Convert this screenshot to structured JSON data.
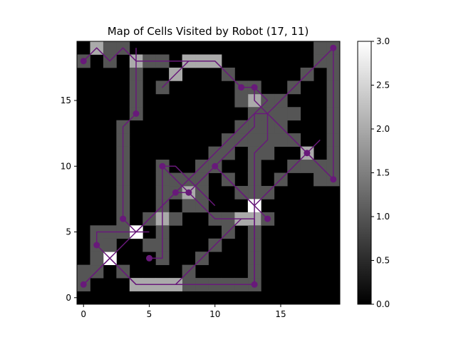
{
  "chart_data": {
    "type": "heatmap",
    "title": "Map of Cells Visited by Robot (17, 11)",
    "grid_size": [
      20,
      20
    ],
    "xlim": [
      -0.5,
      19.5
    ],
    "ylim": [
      -0.5,
      19.5
    ],
    "xticks": [
      0,
      5,
      10,
      15
    ],
    "yticks": [
      0,
      5,
      10,
      15
    ],
    "colormap": "gray",
    "grid": false,
    "colorbar": {
      "range": [
        0,
        3
      ],
      "ticks": [
        "0.0",
        "0.5",
        "1.0",
        "1.5",
        "2.0",
        "2.5",
        "3.0"
      ],
      "position": "right"
    },
    "path_color": "#68197a",
    "cells": [
      {
        "x": 0,
        "y": 18,
        "v": 1
      },
      {
        "x": 1,
        "y": 19,
        "v": 2
      },
      {
        "x": 2,
        "y": 19,
        "v": 1
      },
      {
        "x": 2,
        "y": 18,
        "v": 1
      },
      {
        "x": 3,
        "y": 19,
        "v": 1
      },
      {
        "x": 4,
        "y": 18,
        "v": 2
      },
      {
        "x": 5,
        "y": 18,
        "v": 1
      },
      {
        "x": 6,
        "y": 18,
        "v": 1
      },
      {
        "x": 7,
        "y": 17,
        "v": 2
      },
      {
        "x": 8,
        "y": 18,
        "v": 2
      },
      {
        "x": 9,
        "y": 18,
        "v": 2
      },
      {
        "x": 10,
        "y": 18,
        "v": 2
      },
      {
        "x": 11,
        "y": 17,
        "v": 1
      },
      {
        "x": 12,
        "y": 16,
        "v": 1
      },
      {
        "x": 13,
        "y": 15,
        "v": 2
      },
      {
        "x": 6,
        "y": 16,
        "v": 1
      },
      {
        "x": 4,
        "y": 17,
        "v": 1
      },
      {
        "x": 4,
        "y": 16,
        "v": 1
      },
      {
        "x": 4,
        "y": 15,
        "v": 1
      },
      {
        "x": 4,
        "y": 14,
        "v": 1
      },
      {
        "x": 3,
        "y": 13,
        "v": 1
      },
      {
        "x": 3,
        "y": 12,
        "v": 1
      },
      {
        "x": 3,
        "y": 11,
        "v": 1
      },
      {
        "x": 3,
        "y": 10,
        "v": 1
      },
      {
        "x": 3,
        "y": 9,
        "v": 1
      },
      {
        "x": 3,
        "y": 8,
        "v": 1
      },
      {
        "x": 3,
        "y": 7,
        "v": 1
      },
      {
        "x": 3,
        "y": 6,
        "v": 1
      },
      {
        "x": 4,
        "y": 5,
        "v": 3
      },
      {
        "x": 5,
        "y": 6,
        "v": 1
      },
      {
        "x": 6,
        "y": 7,
        "v": 1
      },
      {
        "x": 6,
        "y": 6,
        "v": 2
      },
      {
        "x": 7,
        "y": 8,
        "v": 1
      },
      {
        "x": 8,
        "y": 8,
        "v": 2
      },
      {
        "x": 9,
        "y": 9,
        "v": 1
      },
      {
        "x": 10,
        "y": 10,
        "v": 1
      },
      {
        "x": 11,
        "y": 11,
        "v": 1
      },
      {
        "x": 12,
        "y": 12,
        "v": 1
      },
      {
        "x": 13,
        "y": 13,
        "v": 1
      },
      {
        "x": 14,
        "y": 14,
        "v": 1
      },
      {
        "x": 15,
        "y": 15,
        "v": 1
      },
      {
        "x": 16,
        "y": 16,
        "v": 1
      },
      {
        "x": 17,
        "y": 17,
        "v": 1
      },
      {
        "x": 18,
        "y": 18,
        "v": 1
      },
      {
        "x": 18,
        "y": 19,
        "v": 1
      },
      {
        "x": 19,
        "y": 19,
        "v": 1
      },
      {
        "x": 19,
        "y": 18,
        "v": 1
      },
      {
        "x": 19,
        "y": 17,
        "v": 1
      },
      {
        "x": 19,
        "y": 16,
        "v": 1
      },
      {
        "x": 19,
        "y": 15,
        "v": 1
      },
      {
        "x": 19,
        "y": 14,
        "v": 1
      },
      {
        "x": 19,
        "y": 13,
        "v": 1
      },
      {
        "x": 19,
        "y": 12,
        "v": 1
      },
      {
        "x": 19,
        "y": 11,
        "v": 1
      },
      {
        "x": 19,
        "y": 10,
        "v": 1
      },
      {
        "x": 19,
        "y": 9,
        "v": 1
      },
      {
        "x": 18,
        "y": 10,
        "v": 1
      },
      {
        "x": 17,
        "y": 11,
        "v": 2
      },
      {
        "x": 16,
        "y": 12,
        "v": 1
      },
      {
        "x": 15,
        "y": 13,
        "v": 1
      },
      {
        "x": 14,
        "y": 14,
        "v": 1
      },
      {
        "x": 13,
        "y": 14,
        "v": 1
      },
      {
        "x": 13,
        "y": 12,
        "v": 1
      },
      {
        "x": 13,
        "y": 11,
        "v": 1
      },
      {
        "x": 13,
        "y": 10,
        "v": 1
      },
      {
        "x": 13,
        "y": 9,
        "v": 1
      },
      {
        "x": 13,
        "y": 8,
        "v": 1
      },
      {
        "x": 13,
        "y": 7,
        "v": 3
      },
      {
        "x": 13,
        "y": 6,
        "v": 2
      },
      {
        "x": 13,
        "y": 5,
        "v": 1
      },
      {
        "x": 13,
        "y": 4,
        "v": 1
      },
      {
        "x": 13,
        "y": 3,
        "v": 1
      },
      {
        "x": 13,
        "y": 2,
        "v": 1
      },
      {
        "x": 13,
        "y": 1,
        "v": 1
      },
      {
        "x": 12,
        "y": 1,
        "v": 1
      },
      {
        "x": 11,
        "y": 1,
        "v": 1
      },
      {
        "x": 10,
        "y": 1,
        "v": 1
      },
      {
        "x": 9,
        "y": 1,
        "v": 1
      },
      {
        "x": 8,
        "y": 1,
        "v": 1
      },
      {
        "x": 7,
        "y": 1,
        "v": 2
      },
      {
        "x": 6,
        "y": 1,
        "v": 2
      },
      {
        "x": 5,
        "y": 1,
        "v": 2
      },
      {
        "x": 4,
        "y": 1,
        "v": 2
      },
      {
        "x": 3,
        "y": 2,
        "v": 1
      },
      {
        "x": 2,
        "y": 3,
        "v": 3
      },
      {
        "x": 1,
        "y": 2,
        "v": 1
      },
      {
        "x": 0,
        "y": 1,
        "v": 1
      },
      {
        "x": 1,
        "y": 4,
        "v": 1
      },
      {
        "x": 1,
        "y": 5,
        "v": 1
      },
      {
        "x": 2,
        "y": 5,
        "v": 1
      },
      {
        "x": 3,
        "y": 5,
        "v": 1
      },
      {
        "x": 6,
        "y": 10,
        "v": 1
      },
      {
        "x": 6,
        "y": 9,
        "v": 1
      },
      {
        "x": 6,
        "y": 8,
        "v": 1
      },
      {
        "x": 6,
        "y": 5,
        "v": 1
      },
      {
        "x": 6,
        "y": 4,
        "v": 1
      },
      {
        "x": 6,
        "y": 3,
        "v": 1
      },
      {
        "x": 5,
        "y": 4,
        "v": 1
      },
      {
        "x": 7,
        "y": 9,
        "v": 1
      },
      {
        "x": 9,
        "y": 7,
        "v": 1
      },
      {
        "x": 10,
        "y": 6,
        "v": 1
      },
      {
        "x": 11,
        "y": 6,
        "v": 1
      },
      {
        "x": 11,
        "y": 5,
        "v": 1
      },
      {
        "x": 10,
        "y": 4,
        "v": 1
      },
      {
        "x": 9,
        "y": 3,
        "v": 1
      },
      {
        "x": 8,
        "y": 2,
        "v": 1
      },
      {
        "x": 12,
        "y": 6,
        "v": 2
      },
      {
        "x": 14,
        "y": 6,
        "v": 1
      },
      {
        "x": 12,
        "y": 8,
        "v": 1
      },
      {
        "x": 11,
        "y": 9,
        "v": 1
      },
      {
        "x": 10,
        "y": 10,
        "v": 1
      },
      {
        "x": 9,
        "y": 10,
        "v": 1
      },
      {
        "x": 8,
        "y": 9,
        "v": 1
      },
      {
        "x": 14,
        "y": 8,
        "v": 1
      },
      {
        "x": 15,
        "y": 9,
        "v": 1
      },
      {
        "x": 16,
        "y": 10,
        "v": 1
      },
      {
        "x": 14,
        "y": 11,
        "v": 1
      },
      {
        "x": 14,
        "y": 12,
        "v": 1
      },
      {
        "x": 14,
        "y": 13,
        "v": 1
      },
      {
        "x": 14,
        "y": 15,
        "v": 1
      },
      {
        "x": 15,
        "y": 12,
        "v": 1
      },
      {
        "x": 16,
        "y": 12,
        "v": 1
      },
      {
        "x": 9,
        "y": 8,
        "v": 1
      },
      {
        "x": 8,
        "y": 7,
        "v": 1
      },
      {
        "x": 7,
        "y": 6,
        "v": 1
      },
      {
        "x": 2,
        "y": 4,
        "v": 1
      },
      {
        "x": 1,
        "y": 3,
        "v": 1
      },
      {
        "x": 0,
        "y": 2,
        "v": 1
      },
      {
        "x": 10,
        "y": 11,
        "v": 1
      },
      {
        "x": 11,
        "y": 12,
        "v": 1
      },
      {
        "x": 12,
        "y": 13,
        "v": 1
      },
      {
        "x": 13,
        "y": 16,
        "v": 1
      },
      {
        "x": 12,
        "y": 15,
        "v": 1
      },
      {
        "x": 17,
        "y": 10,
        "v": 1
      },
      {
        "x": 18,
        "y": 9,
        "v": 1
      },
      {
        "x": 15,
        "y": 14,
        "v": 1
      },
      {
        "x": 16,
        "y": 14,
        "v": 1
      }
    ],
    "path": [
      {
        "x": 0,
        "y": 18
      },
      {
        "x": 1,
        "y": 19
      },
      {
        "x": 2,
        "y": 18
      },
      {
        "x": 3,
        "y": 19
      },
      {
        "x": 4,
        "y": 18
      },
      {
        "x": 7,
        "y": 18
      },
      {
        "x": 8,
        "y": 18
      },
      {
        "x": 6,
        "y": 16
      },
      {
        "x": 8,
        "y": 18
      },
      {
        "x": 10,
        "y": 18
      },
      {
        "x": 12,
        "y": 16
      },
      {
        "x": 13,
        "y": 16
      },
      {
        "x": 13,
        "y": 15
      },
      {
        "x": 14,
        "y": 14
      },
      {
        "x": 19,
        "y": 19
      },
      {
        "x": 19,
        "y": 9
      },
      {
        "x": 17,
        "y": 11
      },
      {
        "x": 14,
        "y": 14
      },
      {
        "x": 13,
        "y": 14
      },
      {
        "x": 13,
        "y": 13
      },
      {
        "x": 12,
        "y": 12
      },
      {
        "x": 8,
        "y": 8
      },
      {
        "x": 7,
        "y": 8
      },
      {
        "x": 6,
        "y": 7
      },
      {
        "x": 5,
        "y": 6
      },
      {
        "x": 4,
        "y": 5
      },
      {
        "x": 3,
        "y": 6
      },
      {
        "x": 3,
        "y": 13
      },
      {
        "x": 4,
        "y": 14
      },
      {
        "x": 4,
        "y": 18
      },
      {
        "x": 4,
        "y": 19
      }
    ],
    "markers": [
      {
        "x": 0,
        "y": 18
      },
      {
        "x": 19,
        "y": 19
      },
      {
        "x": 12,
        "y": 16
      },
      {
        "x": 13,
        "y": 16
      },
      {
        "x": 4,
        "y": 14
      },
      {
        "x": 17,
        "y": 11
      },
      {
        "x": 19,
        "y": 9
      },
      {
        "x": 6,
        "y": 10
      },
      {
        "x": 10,
        "y": 10
      },
      {
        "x": 7,
        "y": 8
      },
      {
        "x": 8,
        "y": 8
      },
      {
        "x": 3,
        "y": 6
      },
      {
        "x": 14,
        "y": 6
      },
      {
        "x": 1,
        "y": 4
      },
      {
        "x": 5,
        "y": 3
      },
      {
        "x": 0,
        "y": 1
      },
      {
        "x": 13,
        "y": 1
      }
    ],
    "extra_paths": [
      [
        {
          "x": 6,
          "y": 10
        },
        {
          "x": 6,
          "y": 3
        },
        {
          "x": 5,
          "y": 3
        }
      ],
      [
        {
          "x": 6,
          "y": 10
        },
        {
          "x": 8,
          "y": 8
        },
        {
          "x": 10,
          "y": 6
        },
        {
          "x": 13,
          "y": 6
        },
        {
          "x": 13,
          "y": 1
        },
        {
          "x": 8,
          "y": 1
        },
        {
          "x": 7,
          "y": 1
        },
        {
          "x": 4,
          "y": 1
        },
        {
          "x": 2,
          "y": 3
        },
        {
          "x": 0,
          "y": 1
        }
      ],
      [
        {
          "x": 10,
          "y": 10
        },
        {
          "x": 14,
          "y": 6
        }
      ],
      [
        {
          "x": 10,
          "y": 10
        },
        {
          "x": 13,
          "y": 7
        },
        {
          "x": 16,
          "y": 10
        },
        {
          "x": 18,
          "y": 12
        }
      ],
      [
        {
          "x": 13,
          "y": 1
        },
        {
          "x": 13,
          "y": 11
        },
        {
          "x": 14,
          "y": 12
        },
        {
          "x": 14,
          "y": 14
        }
      ],
      [
        {
          "x": 0,
          "y": 1
        },
        {
          "x": 5,
          "y": 6
        },
        {
          "x": 9,
          "y": 10
        },
        {
          "x": 14,
          "y": 15
        },
        {
          "x": 13,
          "y": 16
        }
      ],
      [
        {
          "x": 1,
          "y": 4
        },
        {
          "x": 1,
          "y": 5
        },
        {
          "x": 4,
          "y": 5
        },
        {
          "x": 5,
          "y": 5
        }
      ],
      [
        {
          "x": 1,
          "y": 4
        },
        {
          "x": 2,
          "y": 3
        },
        {
          "x": 4,
          "y": 1
        }
      ],
      [
        {
          "x": 6,
          "y": 1
        },
        {
          "x": 7,
          "y": 1
        },
        {
          "x": 9,
          "y": 3
        },
        {
          "x": 12,
          "y": 6
        }
      ],
      [
        {
          "x": 6,
          "y": 10
        },
        {
          "x": 7,
          "y": 10
        },
        {
          "x": 9,
          "y": 8
        },
        {
          "x": 10,
          "y": 7
        }
      ]
    ]
  }
}
